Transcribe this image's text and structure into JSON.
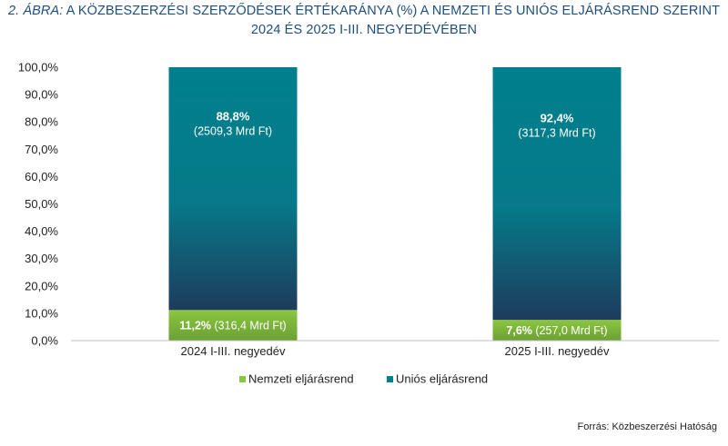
{
  "title": {
    "prefix": "2. ÁBRA:",
    "line1": "A KÖZBESZERZÉSI SZERZŐDÉSEK ÉRTÉKARÁNYA (%) A NEMZETI ÉS UNIÓS ELJÁRÁSREND SZERINT",
    "line2": "2024 ÉS 2025 I-III. NEGYEDÉVÉBEN"
  },
  "source": "Forrás: Közbeszerzési Hatóság",
  "chart_data": {
    "type": "bar",
    "stacked": true,
    "categories": [
      "2024 I-III. negyedév",
      "2025 I-III. negyedév"
    ],
    "series": [
      {
        "name": "Nemzeti eljárásrend",
        "color": "#8cc63f",
        "values": [
          11.2,
          7.6
        ],
        "pct_labels": [
          "11,2%",
          "7,6%"
        ],
        "amount_labels": [
          "(316,4 Mrd Ft)",
          "(257,0 Mrd Ft)"
        ]
      },
      {
        "name": "Uniós eljárásrend",
        "color": "#007f8c",
        "values": [
          88.8,
          92.4
        ],
        "pct_labels": [
          "88,8%",
          "92,4%"
        ],
        "amount_labels": [
          "(2509,3 Mrd Ft)",
          "(3117,3 Mrd Ft)"
        ]
      }
    ],
    "ylim": [
      0,
      100
    ],
    "yticks": [
      "0,0%",
      "10,0%",
      "20,0%",
      "30,0%",
      "40,0%",
      "50,0%",
      "60,0%",
      "70,0%",
      "80,0%",
      "90,0%",
      "100,0%"
    ],
    "grid": false,
    "legend_position": "bottom"
  }
}
